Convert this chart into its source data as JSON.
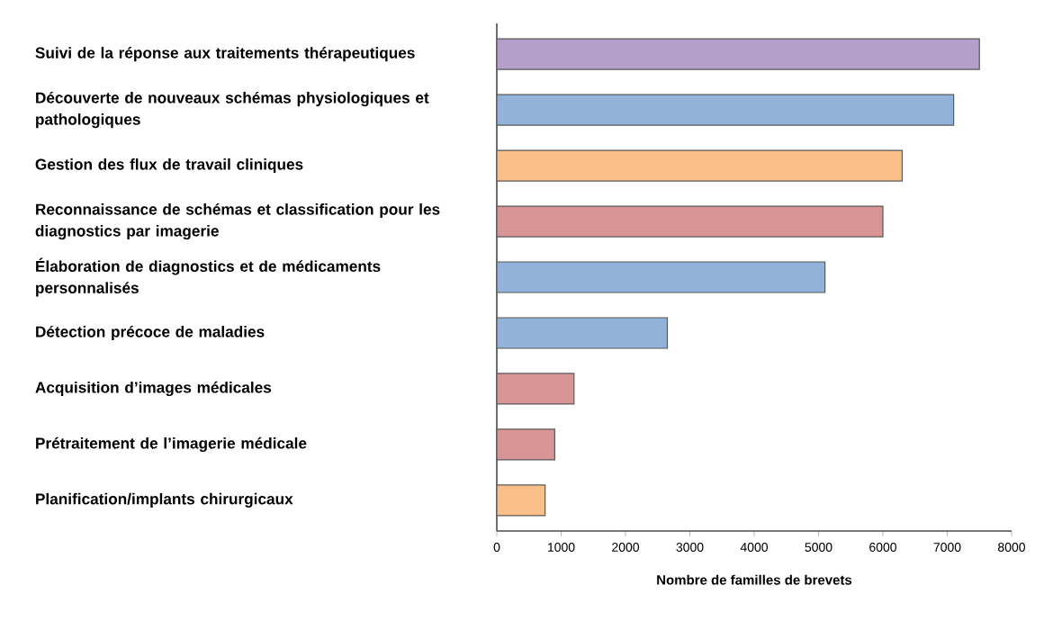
{
  "chart_data": {
    "type": "bar",
    "orientation": "horizontal",
    "xlabel": "Nombre de familles de brevets",
    "categories": [
      "Suivi de la réponse aux traitements thérapeutiques",
      "Découverte de nouveaux schémas physiologiques et pathologiques",
      "Gestion des flux de travail cliniques",
      "Reconnaissance de schémas et classification pour les diagnostics par imagerie",
      "Élaboration de diagnostics et de médicaments personnalisés",
      "Détection précoce de maladies",
      "Acquisition d’images médicales",
      "Prétraitement de l’imagerie médicale",
      "Planification/implants chirurgicaux"
    ],
    "values": [
      7500,
      7100,
      6300,
      6000,
      5100,
      2650,
      1200,
      900,
      750
    ],
    "colors": [
      "#b39fc9",
      "#92b2d9",
      "#fbbf8a",
      "#d99595",
      "#92b2d9",
      "#92b2d9",
      "#d99595",
      "#d99595",
      "#fbbf8a"
    ],
    "xlim": [
      0,
      8000
    ],
    "xticks": [
      0,
      1000,
      2000,
      3000,
      4000,
      5000,
      6000,
      7000,
      8000
    ],
    "grid": false
  }
}
